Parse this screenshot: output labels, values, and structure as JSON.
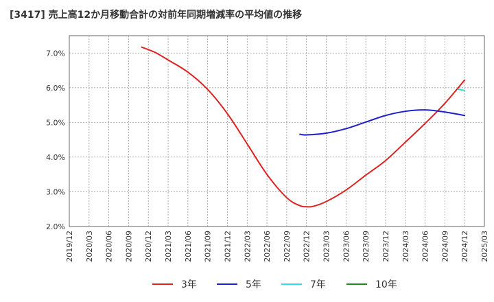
{
  "chart_data": {
    "type": "line",
    "title": "[3417]  売上高12か月移動合計の対前年同期増減率の平均値の推移",
    "ylim": [
      2.0,
      7.5
    ],
    "y_ticks": [
      "2.0%",
      "3.0%",
      "4.0%",
      "5.0%",
      "6.0%",
      "7.0%"
    ],
    "y_tick_values": [
      2.0,
      3.0,
      4.0,
      5.0,
      6.0,
      7.0
    ],
    "x_ticks": [
      "2019/12",
      "2020/03",
      "2020/06",
      "2020/09",
      "2020/12",
      "2021/03",
      "2021/06",
      "2021/09",
      "2021/12",
      "2022/03",
      "2022/06",
      "2022/09",
      "2022/12",
      "2023/03",
      "2023/06",
      "2023/09",
      "2023/12",
      "2024/03",
      "2024/06",
      "2024/09",
      "2024/12",
      "2025/03"
    ],
    "grid": true,
    "legend_position": "bottom",
    "series": [
      {
        "name": "3年",
        "color": "#dd2222",
        "x": [
          "2020/11",
          "2021/01",
          "2021/03",
          "2021/06",
          "2021/09",
          "2021/12",
          "2022/03",
          "2022/06",
          "2022/09",
          "2022/11",
          "2022/12",
          "2023/01",
          "2023/03",
          "2023/06",
          "2023/09",
          "2023/12",
          "2024/03",
          "2024/06",
          "2024/09",
          "2024/12"
        ],
        "values": [
          7.17,
          7.02,
          6.8,
          6.45,
          5.95,
          5.25,
          4.38,
          3.5,
          2.83,
          2.6,
          2.57,
          2.58,
          2.72,
          3.05,
          3.48,
          3.9,
          4.43,
          4.97,
          5.55,
          6.22
        ]
      },
      {
        "name": "5年",
        "color": "#1f1fcc",
        "x": [
          "2022/11",
          "2022/12",
          "2023/03",
          "2023/06",
          "2023/09",
          "2023/12",
          "2024/03",
          "2024/06",
          "2024/09",
          "2024/12"
        ],
        "values": [
          4.66,
          4.64,
          4.69,
          4.82,
          5.01,
          5.2,
          5.32,
          5.36,
          5.3,
          5.2
        ]
      },
      {
        "name": "7年",
        "color": "#33dddd",
        "x": [
          "2024/11",
          "2024/12"
        ],
        "values": [
          5.96,
          5.92
        ]
      },
      {
        "name": "10年",
        "color": "#228822",
        "x": [],
        "values": []
      }
    ]
  }
}
